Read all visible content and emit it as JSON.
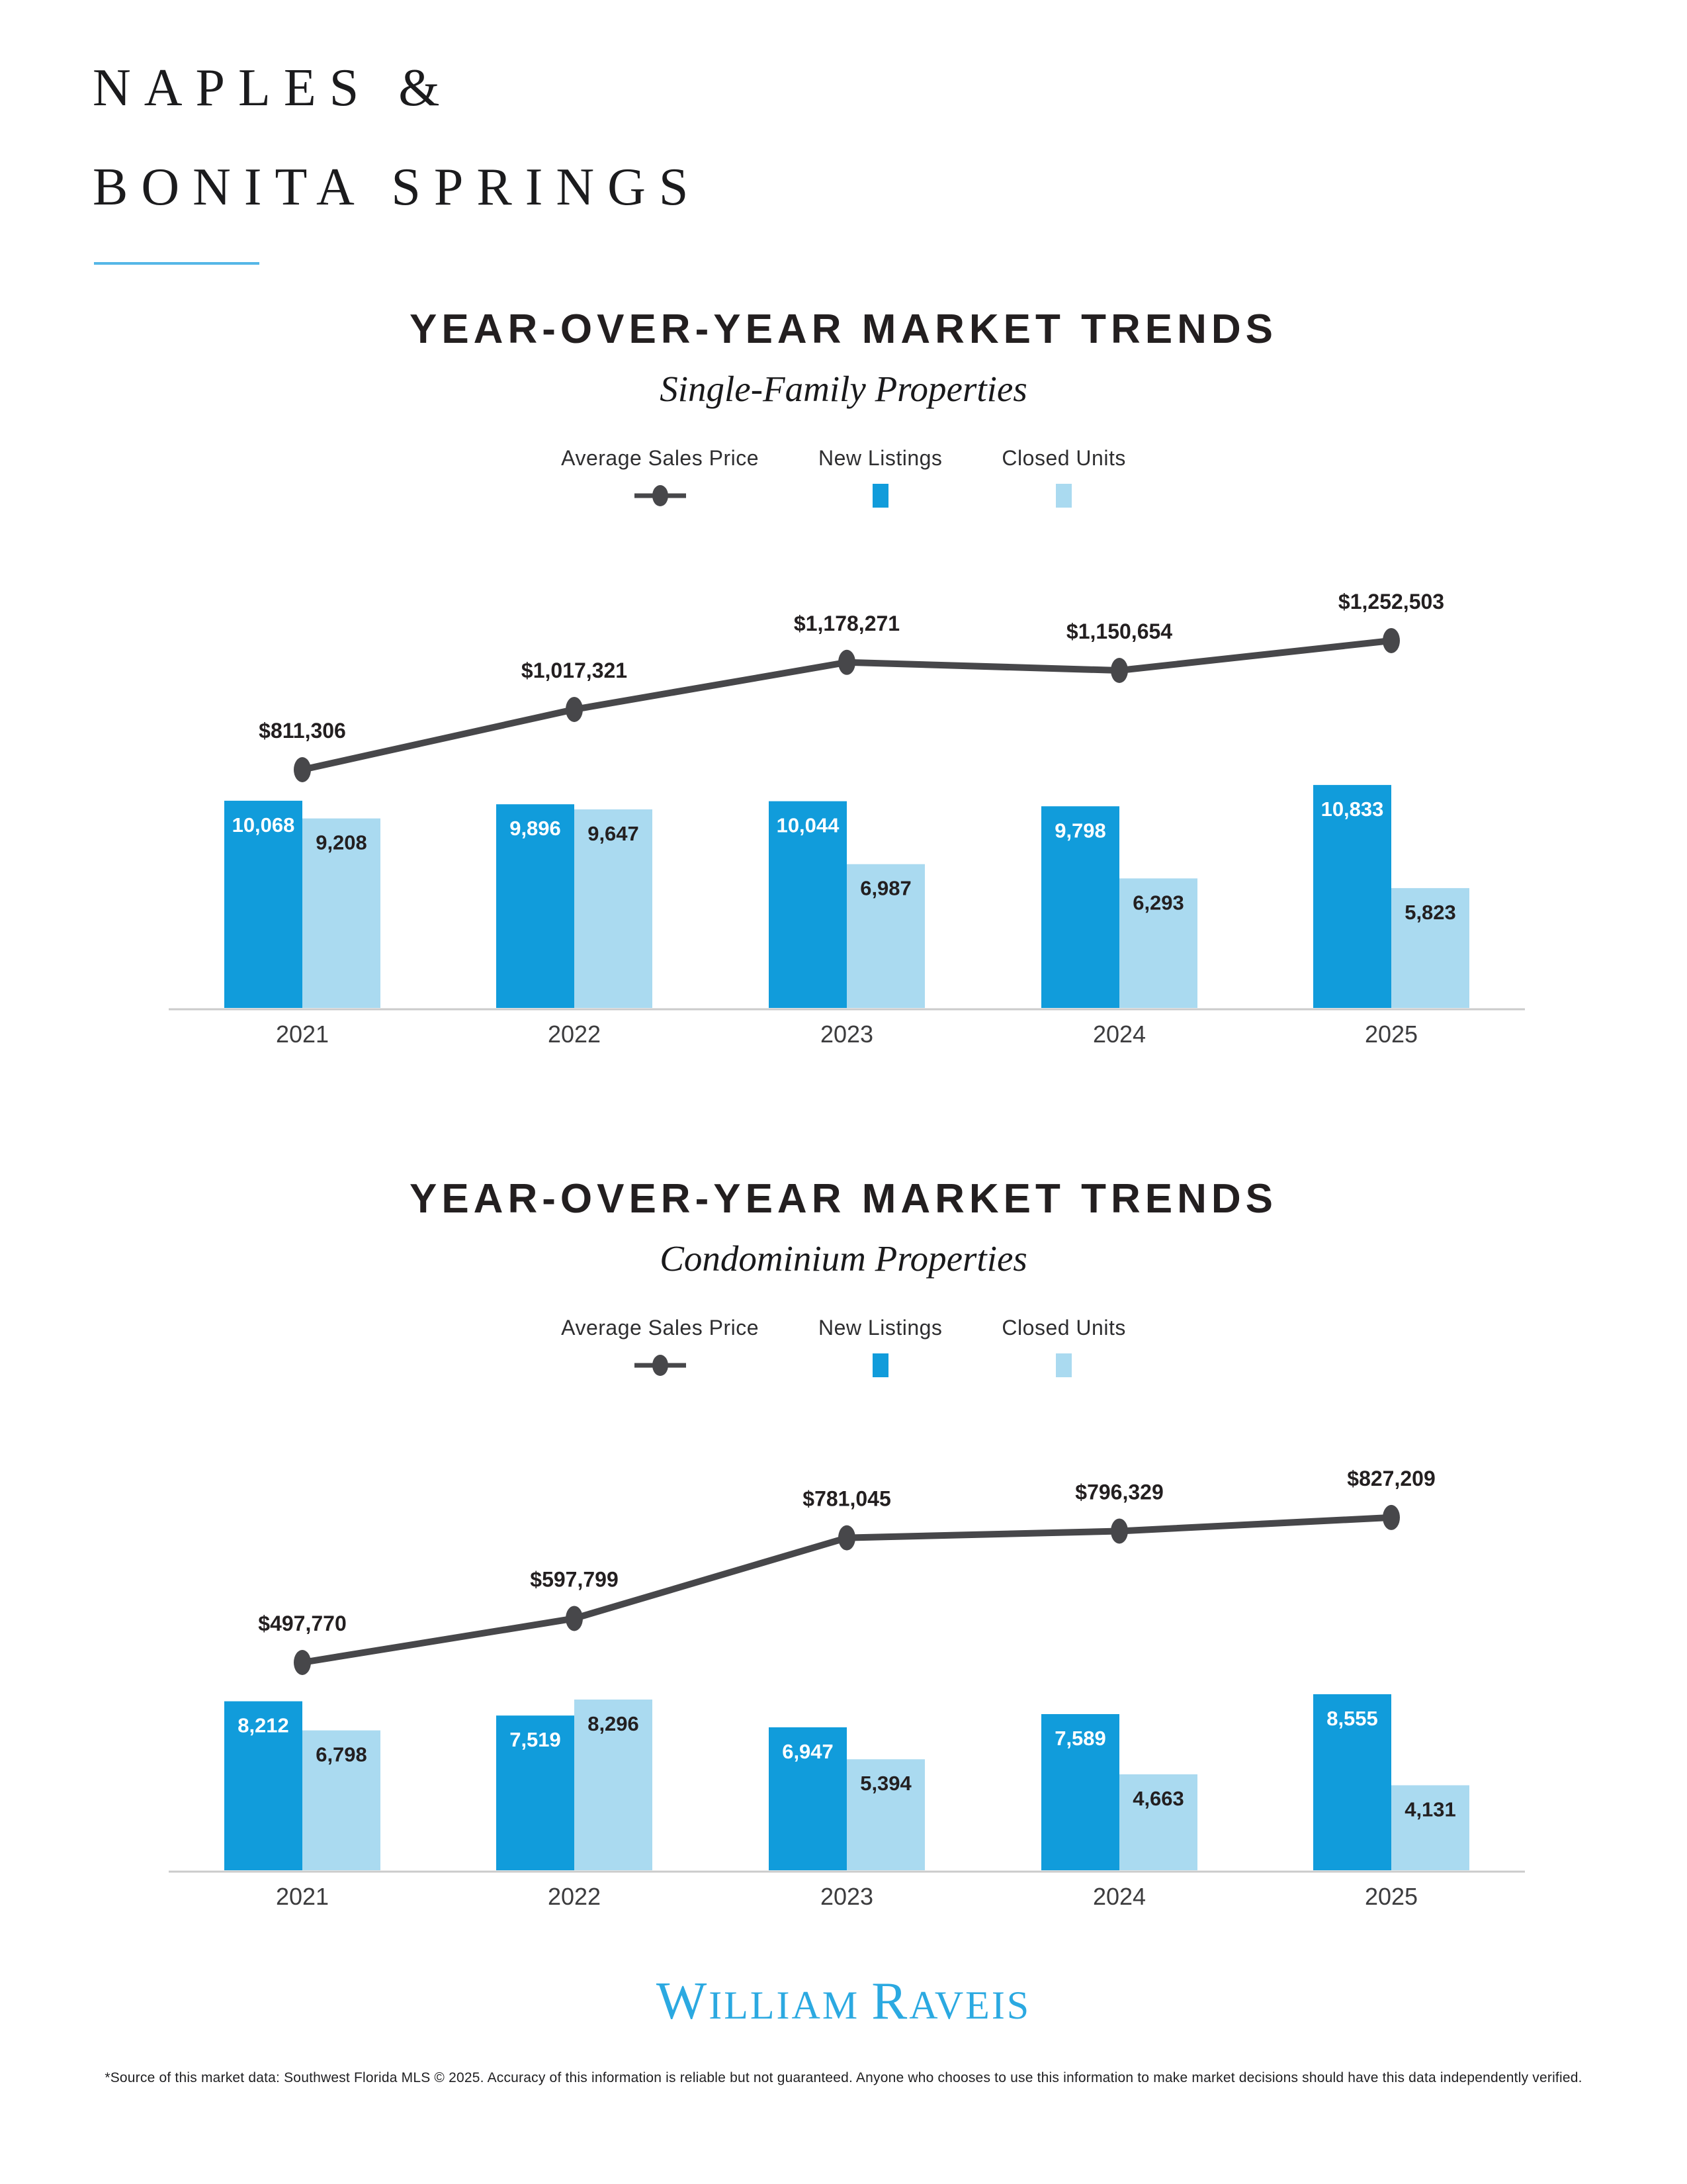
{
  "page": {
    "title_line1": "NAPLES &",
    "title_line2": "BONITA SPRINGS"
  },
  "colors": {
    "new_listings": "#119CDB",
    "closed_units": "#AADAF0",
    "price_line": "#47474A",
    "text_dark": "#231F20",
    "axis": "#CBCBCB",
    "year_label": "#3C3C3E",
    "logo_blue": "#2BA9E1",
    "title_underline": "#55B7E7"
  },
  "chart_data": [
    {
      "type": "bar+line",
      "title": "YEAR-OVER-YEAR MARKET TRENDS",
      "subtitle": "Single-Family Properties",
      "legend": [
        "Average Sales Price",
        "New Listings",
        "Closed Units"
      ],
      "legend_position": "top",
      "grid": false,
      "categories": [
        "2021",
        "2022",
        "2023",
        "2024",
        "2025"
      ],
      "series": [
        {
          "name": "Average Sales Price",
          "type": "line",
          "values": [
            811306,
            1017321,
            1178271,
            1150654,
            1252503
          ],
          "labels": [
            "$811,306",
            "$1,017,321",
            "$1,178,271",
            "$1,150,654",
            "$1,252,503"
          ]
        },
        {
          "name": "New Listings",
          "type": "bar",
          "values": [
            10068,
            9896,
            10044,
            9798,
            10833
          ],
          "labels": [
            "10,068",
            "9,896",
            "10,044",
            "9,798",
            "10,833"
          ]
        },
        {
          "name": "Closed Units",
          "type": "bar",
          "values": [
            9208,
            9647,
            6987,
            6293,
            5823
          ],
          "labels": [
            "9,208",
            "9,647",
            "6,987",
            "6,293",
            "5,823"
          ]
        }
      ]
    },
    {
      "type": "bar+line",
      "title": "YEAR-OVER-YEAR MARKET TRENDS",
      "subtitle": "Condominium Properties",
      "legend": [
        "Average Sales Price",
        "New Listings",
        "Closed Units"
      ],
      "legend_position": "top",
      "grid": false,
      "categories": [
        "2021",
        "2022",
        "2023",
        "2024",
        "2025"
      ],
      "series": [
        {
          "name": "Average Sales Price",
          "type": "line",
          "values": [
            497770,
            597799,
            781045,
            796329,
            827209
          ],
          "labels": [
            "$497,770",
            "$597,799",
            "$781,045",
            "$796,329",
            "$827,209"
          ]
        },
        {
          "name": "New Listings",
          "type": "bar",
          "values": [
            8212,
            7519,
            6947,
            7589,
            8555
          ],
          "labels": [
            "8,212",
            "7,519",
            "6,947",
            "7,589",
            "8,555"
          ]
        },
        {
          "name": "Closed Units",
          "type": "bar",
          "values": [
            6798,
            8296,
            5394,
            4663,
            4131
          ],
          "labels": [
            "6,798",
            "8,296",
            "5,394",
            "4,663",
            "4,131"
          ]
        }
      ]
    }
  ],
  "footer": {
    "logo": {
      "part1": "W",
      "part2": "ILLIAM",
      "part3": "R",
      "part4": "AVEIS"
    },
    "disclaimer": "*Source of this market data: Southwest Florida MLS © 2025. Accuracy of this information is reliable but not guaranteed. Anyone who chooses to use this information to make market decisions should have this data independently verified."
  }
}
